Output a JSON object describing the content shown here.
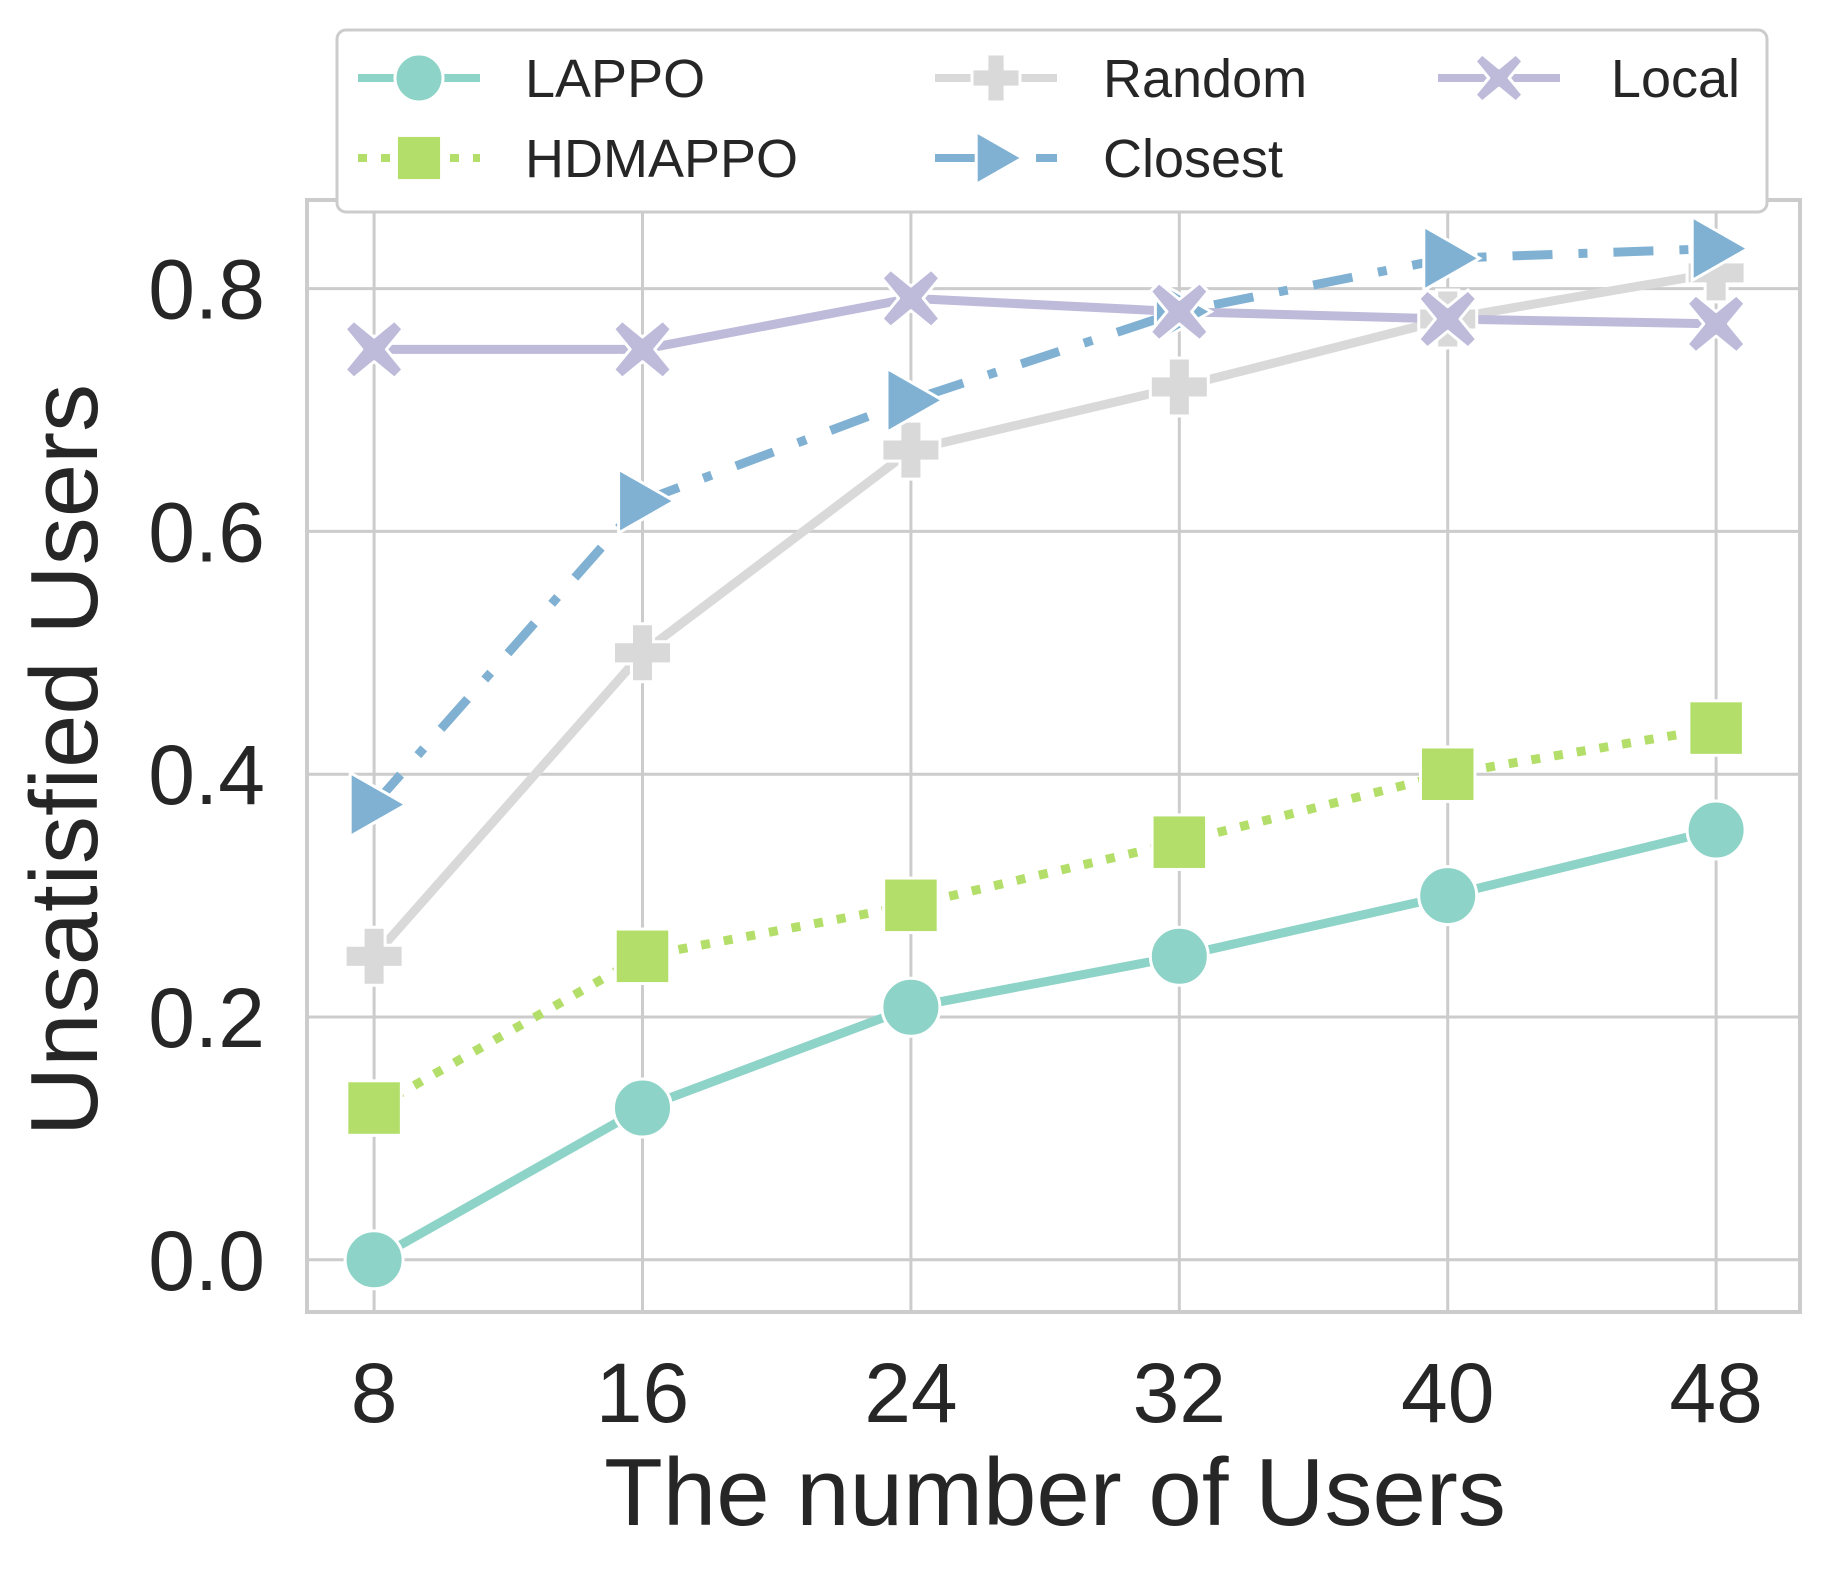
{
  "chart_data": {
    "type": "line",
    "xlabel": "The number of Users",
    "ylabel": "Unsatisfied Users",
    "x": [
      8,
      16,
      24,
      32,
      40,
      48
    ],
    "xticks": [
      "8",
      "16",
      "24",
      "32",
      "40",
      "48"
    ],
    "yticks": [
      "0.0",
      "0.2",
      "0.4",
      "0.6",
      "0.8"
    ],
    "ytick_values": [
      0.0,
      0.2,
      0.4,
      0.6,
      0.8
    ],
    "xlim": [
      6,
      50.5
    ],
    "ylim": [
      -0.043,
      0.873
    ],
    "grid": true,
    "legend_position": "top",
    "series": [
      {
        "name": "LAPPO",
        "color": "#8dd3c7",
        "marker": "circle",
        "linestyle": "solid",
        "values": [
          0.0,
          0.125,
          0.208,
          0.25,
          0.3,
          0.354
        ]
      },
      {
        "name": "HDMAPPO",
        "color": "#b3de69",
        "marker": "square",
        "linestyle": "dotted",
        "values": [
          0.125,
          0.25,
          0.292,
          0.344,
          0.4,
          0.438
        ]
      },
      {
        "name": "Random",
        "color": "#d9d9d9",
        "marker": "plus",
        "linestyle": "solid",
        "values": [
          0.25,
          0.5,
          0.667,
          0.719,
          0.775,
          0.813
        ]
      },
      {
        "name": "Closest",
        "color": "#80b1d3",
        "marker": "triangle-right",
        "linestyle": "dashdot",
        "values": [
          0.375,
          0.625,
          0.708,
          0.781,
          0.825,
          0.833
        ]
      },
      {
        "name": "Local",
        "color": "#bebada",
        "marker": "x",
        "linestyle": "solid",
        "values": [
          0.75,
          0.75,
          0.792,
          0.781,
          0.775,
          0.771
        ]
      }
    ]
  }
}
